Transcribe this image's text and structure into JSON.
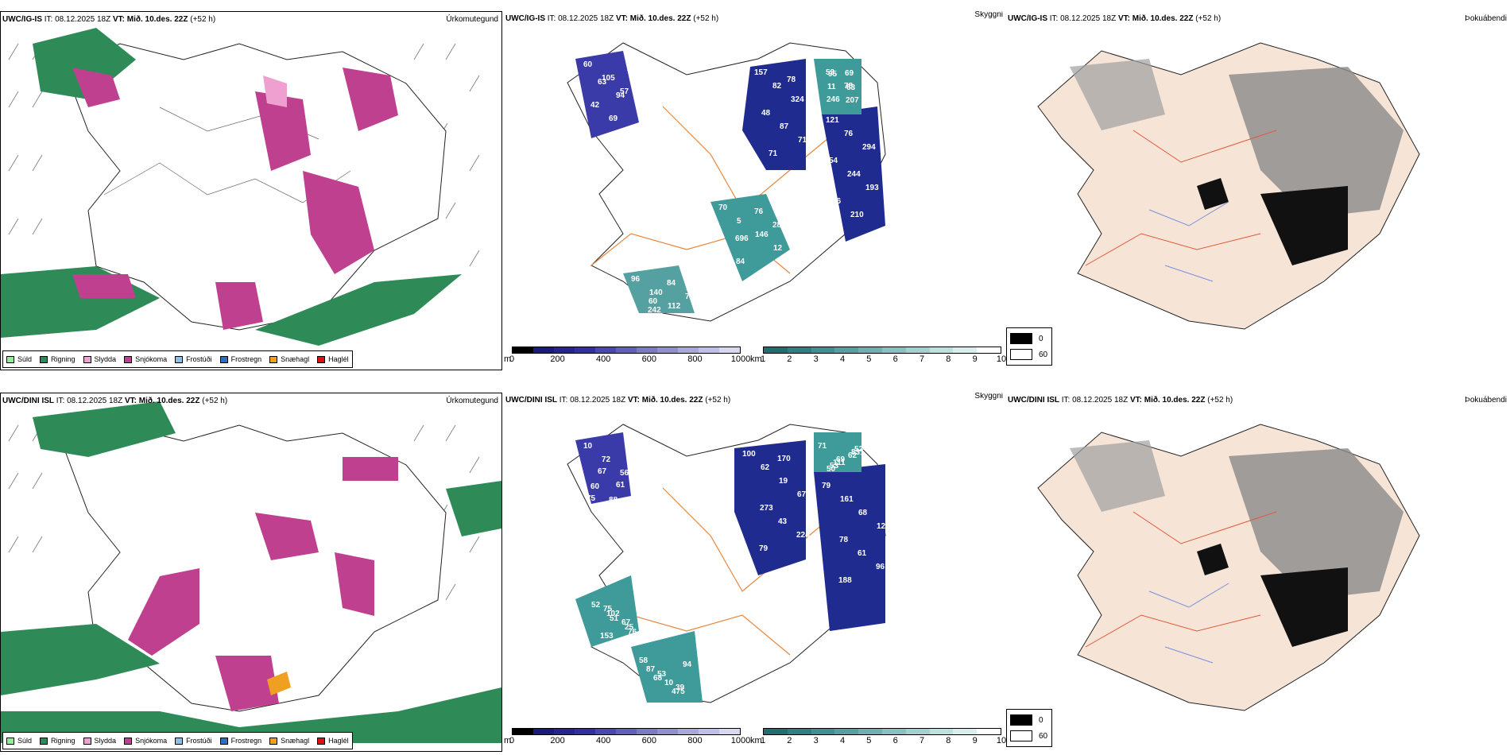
{
  "panels": {
    "top_precip": {
      "model": "UWC/IG-IS",
      "it_label": "IT: 08.12.2025 18Z",
      "vt_label": "VT: Mið. 10.des. 22Z",
      "lead": "(+52 h)",
      "title": "Úrkomutegund"
    },
    "top_clouds": {
      "model": "UWC/IG-IS",
      "it_label": "IT: 08.12.2025 18Z",
      "vt_label": "VT: Mið. 10.des. 22Z",
      "lead": "(+52 h)",
      "title": "Skyggni",
      "labels": [
        "60",
        "157",
        "53",
        "121",
        "70",
        "96",
        "105",
        "82",
        "78",
        "76",
        "5",
        "140",
        "57",
        "324",
        "246",
        "294",
        "146",
        "112",
        "42",
        "48",
        "69",
        "54",
        "12",
        "108",
        "69",
        "87",
        "11",
        "244",
        "84",
        "60",
        "247",
        "71",
        "207",
        "193",
        "76",
        "84",
        "63",
        "71",
        "95",
        "96",
        "288",
        "73",
        "94",
        "78",
        "63",
        "210",
        "696",
        "242"
      ]
    },
    "top_fog": {
      "model": "UWC/IG-IS",
      "it_label": "IT: 08.12.2025 18Z",
      "vt_label": "VT: Mið. 10.des. 22Z",
      "lead": "(+52 h)",
      "title": "Þokuábendi"
    },
    "bottom_precip": {
      "model": "UWC/DINI ISL",
      "it_label": "IT: 08.12.2025 18Z",
      "vt_label": "VT: Mið. 10.des. 22Z",
      "lead": "(+52 h)",
      "title": "Úrkomutegund"
    },
    "bottom_clouds": {
      "model": "UWC/DINI ISL",
      "it_label": "IT: 08.12.2025 18Z",
      "vt_label": "VT: Mið. 10.des. 22Z",
      "lead": "(+52 h)",
      "title": "Skyggni",
      "labels": [
        "10",
        "100",
        "71",
        "79",
        "52",
        "58",
        "72",
        "62",
        "69",
        "161",
        "51",
        "53",
        "56",
        "19",
        "52",
        "68",
        "76",
        "39",
        "60",
        "67",
        "111",
        "123",
        "102",
        "87",
        "88",
        "273",
        "831",
        "78",
        "25",
        "10",
        "39",
        "43",
        "53",
        "61",
        "75",
        "94",
        "67",
        "224",
        "62",
        "96",
        "67",
        "68",
        "61",
        "79",
        "50",
        "188",
        "153",
        "475",
        "75",
        "170"
      ]
    },
    "bottom_fog": {
      "model": "UWC/DINI ISL",
      "it_label": "IT: 08.12.2025 18Z",
      "vt_label": "VT: Mið. 10.des. 22Z",
      "lead": "(+52 h)",
      "title": "Þokuábendi"
    }
  },
  "precip_legend": [
    {
      "label": "Súld",
      "color": "#90ee90"
    },
    {
      "label": "Rigning",
      "color": "#2e8b57"
    },
    {
      "label": "Slydda",
      "color": "#f0a0d0"
    },
    {
      "label": "Snjókoma",
      "color": "#c04090"
    },
    {
      "label": "Frostúði",
      "color": "#87bfef"
    },
    {
      "label": "Frostregn",
      "color": "#2a70c0"
    },
    {
      "label": "Snæhagl",
      "color": "#f0a020"
    },
    {
      "label": "Haglél",
      "color": "#e01010"
    }
  ],
  "height_colorbar": {
    "unit": "m",
    "ticks": [
      "0",
      "200",
      "400",
      "600",
      "800",
      "1000"
    ],
    "colors": [
      "#000000",
      "#1a1a7a",
      "#25258f",
      "#3030a0",
      "#4848b0",
      "#6060bb",
      "#7a7ac5",
      "#9090d0",
      "#a8a8da",
      "#c0c0e5",
      "#d8d8f0"
    ]
  },
  "visibility_colorbar": {
    "unit": "km",
    "ticks": [
      "1",
      "2",
      "3",
      "4",
      "5",
      "6",
      "7",
      "8",
      "9",
      "10"
    ],
    "colors": [
      "#1f6f6f",
      "#2e8080",
      "#3f9090",
      "#55a0a0",
      "#6fb0b0",
      "#8ac0c0",
      "#a5d0d0",
      "#c0e0e0",
      "#dbeeee",
      "#ffffff"
    ]
  },
  "fog_legend": [
    {
      "label": "0",
      "color": "#000000"
    },
    {
      "label": "60",
      "color": "#ffffff"
    }
  ],
  "colors": {
    "land": "#f6e4d6",
    "roads": "#e8873a",
    "rivers": "#7a8fe0",
    "rain": "#2e8b57",
    "snow": "#c04090",
    "sleet": "#f0a0d0",
    "cloud_dark": "#1f2b8f",
    "cloud_teal": "#3f9a9a"
  }
}
